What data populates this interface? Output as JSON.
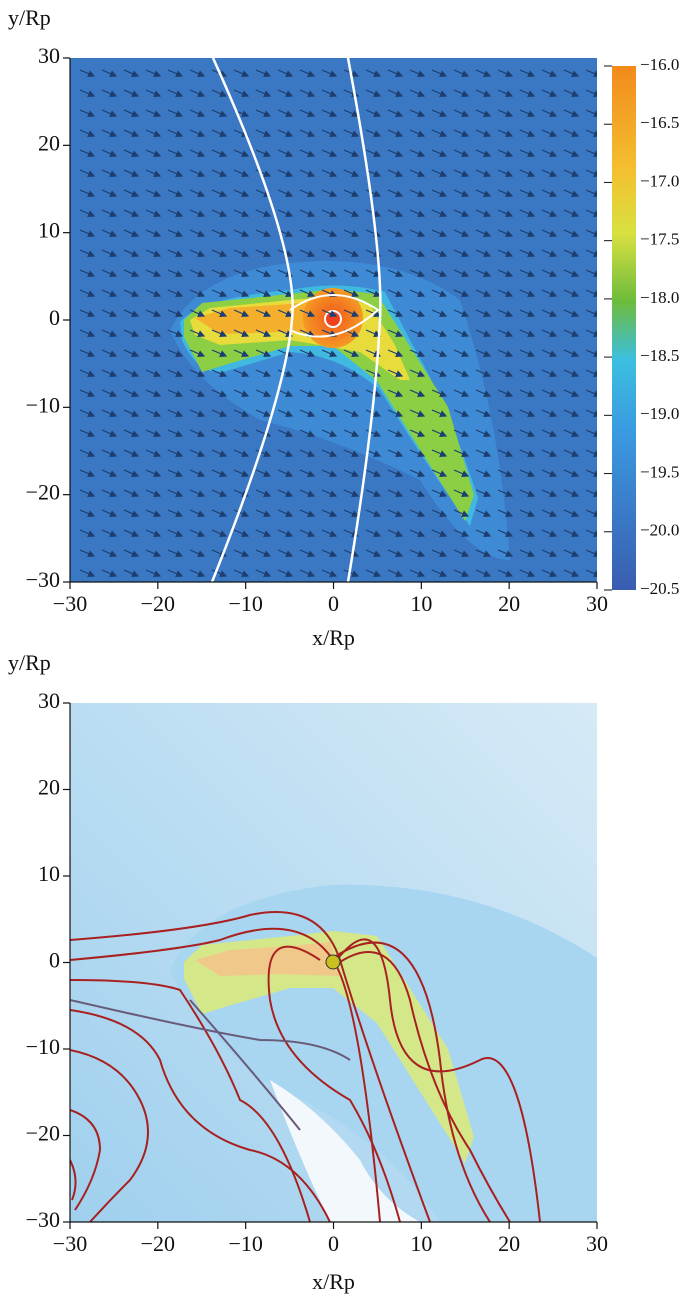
{
  "chart_data": [
    {
      "type": "heatmap",
      "xlabel": "x/Rp",
      "ylabel": "y/Rp",
      "xlim": [
        -30,
        30
      ],
      "ylim": [
        -30,
        30
      ],
      "xticks": [
        {
          "value": -30,
          "label": "−30"
        },
        {
          "value": -20,
          "label": "−20"
        },
        {
          "value": -10,
          "label": "−10"
        },
        0,
        10,
        20,
        30
      ],
      "yticks": [
        {
          "value": -30,
          "label": "−30"
        },
        {
          "value": -20,
          "label": "−20"
        },
        {
          "value": -10,
          "label": "−10"
        },
        0,
        10,
        20,
        30
      ],
      "colorbar": {
        "lim": [
          -20.5,
          -16.0
        ],
        "ticks": [
          {
            "value": -16.0,
            "label": "−16.0"
          },
          {
            "value": -16.5,
            "label": "−16.5"
          },
          {
            "value": -17.0,
            "label": "−17.0"
          },
          {
            "value": -17.5,
            "label": "−17.5"
          },
          {
            "value": -18.0,
            "label": "−18.0"
          },
          {
            "value": -18.5,
            "label": "−18.5"
          },
          {
            "value": -19.0,
            "label": "−19.0"
          },
          {
            "value": -19.5,
            "label": "−19.5"
          },
          {
            "value": -20.0,
            "label": "−20.0"
          },
          {
            "value": -20.5,
            "label": "−20.5"
          }
        ]
      }
    },
    {
      "type": "heatmap",
      "xlabel": "x/Rp",
      "ylabel": "y/Rp",
      "xlim": [
        -30,
        30
      ],
      "ylim": [
        -30,
        30
      ],
      "xticks": [
        {
          "value": -30,
          "label": "−30"
        },
        {
          "value": -20,
          "label": "−20"
        },
        {
          "value": -10,
          "label": "−10"
        },
        0,
        10,
        20,
        30
      ],
      "yticks": [
        {
          "value": -30,
          "label": "−30"
        },
        {
          "value": -20,
          "label": "−20"
        },
        {
          "value": -10,
          "label": "−10"
        },
        0,
        10,
        20,
        30
      ]
    }
  ]
}
